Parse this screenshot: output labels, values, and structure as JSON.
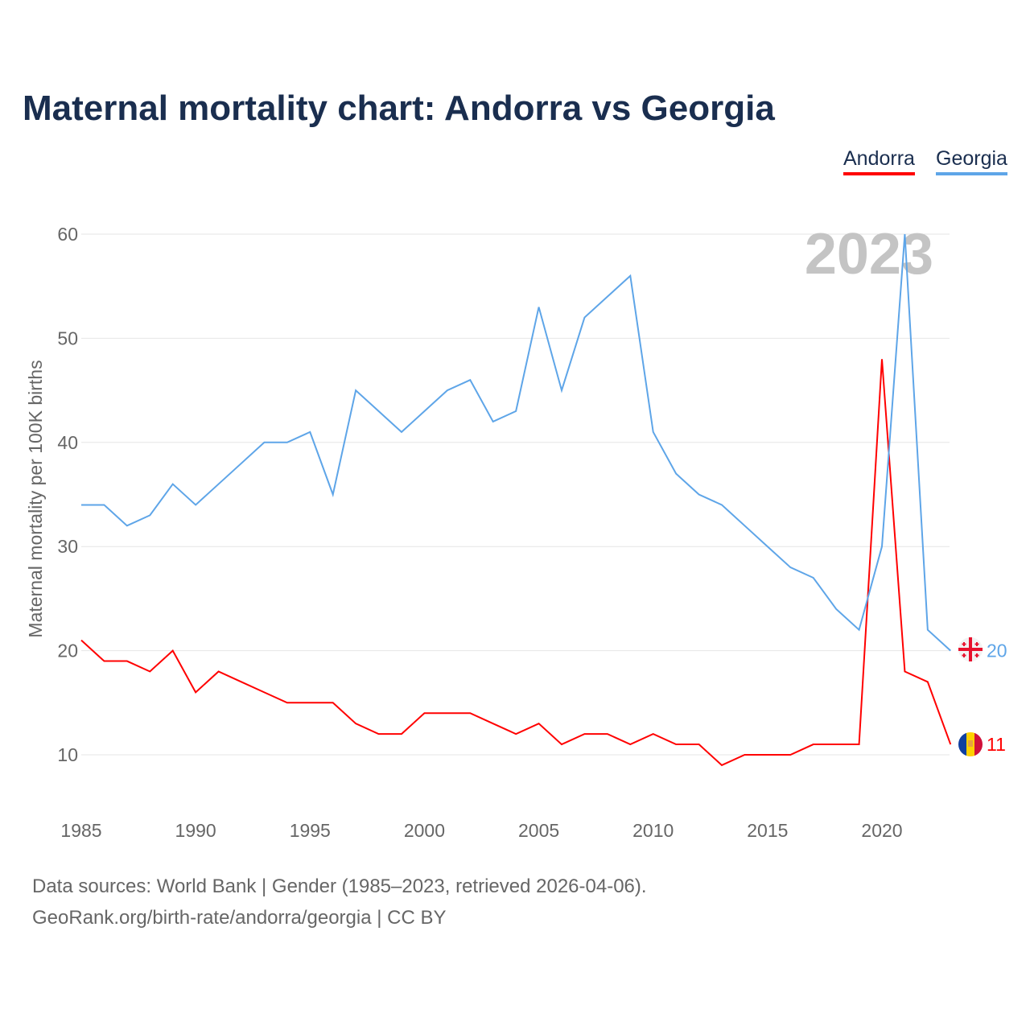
{
  "title": "Maternal mortality chart: Andorra vs Georgia",
  "legend": {
    "andorra": "Andorra",
    "georgia": "Georgia"
  },
  "footer": {
    "line1": "Data sources: World Bank | Gender (1985–2023, retrieved 2026-04-06).",
    "line2": "GeoRank.org/birth-rate/andorra/georgia | CC BY"
  },
  "chart_data": {
    "type": "line",
    "title": "Maternal mortality chart: Andorra vs Georgia",
    "ylabel": "Maternal mortality per 100K births",
    "xlabel": "",
    "year_label": "2023",
    "xlim": [
      1985,
      2023
    ],
    "ylim": [
      5,
      62
    ],
    "xticks": [
      1985,
      1990,
      1995,
      2000,
      2005,
      2010,
      2015,
      2020
    ],
    "yticks": [
      10,
      20,
      30,
      40,
      50,
      60
    ],
    "x": [
      1985,
      1986,
      1987,
      1988,
      1989,
      1990,
      1991,
      1992,
      1993,
      1994,
      1995,
      1996,
      1997,
      1998,
      1999,
      2000,
      2001,
      2002,
      2003,
      2004,
      2005,
      2006,
      2007,
      2008,
      2009,
      2010,
      2011,
      2012,
      2013,
      2014,
      2015,
      2016,
      2017,
      2018,
      2019,
      2020,
      2021,
      2022,
      2023
    ],
    "series": [
      {
        "name": "Andorra",
        "color": "#ff0000",
        "end_label": "11",
        "values": [
          21,
          19,
          19,
          18,
          20,
          16,
          18,
          17,
          16,
          15,
          15,
          15,
          13,
          12,
          12,
          14,
          14,
          14,
          13,
          12,
          13,
          11,
          12,
          12,
          11,
          12,
          11,
          11,
          9,
          10,
          10,
          10,
          11,
          11,
          11,
          48,
          18,
          17,
          11
        ]
      },
      {
        "name": "Georgia",
        "color": "#5ea5e8",
        "end_label": "20",
        "values": [
          34,
          34,
          32,
          33,
          36,
          34,
          36,
          38,
          40,
          40,
          41,
          35,
          45,
          43,
          41,
          43,
          45,
          46,
          42,
          43,
          53,
          45,
          52,
          54,
          56,
          41,
          37,
          35,
          34,
          32,
          30,
          28,
          27,
          24,
          22,
          30,
          60,
          22,
          20
        ]
      }
    ]
  }
}
